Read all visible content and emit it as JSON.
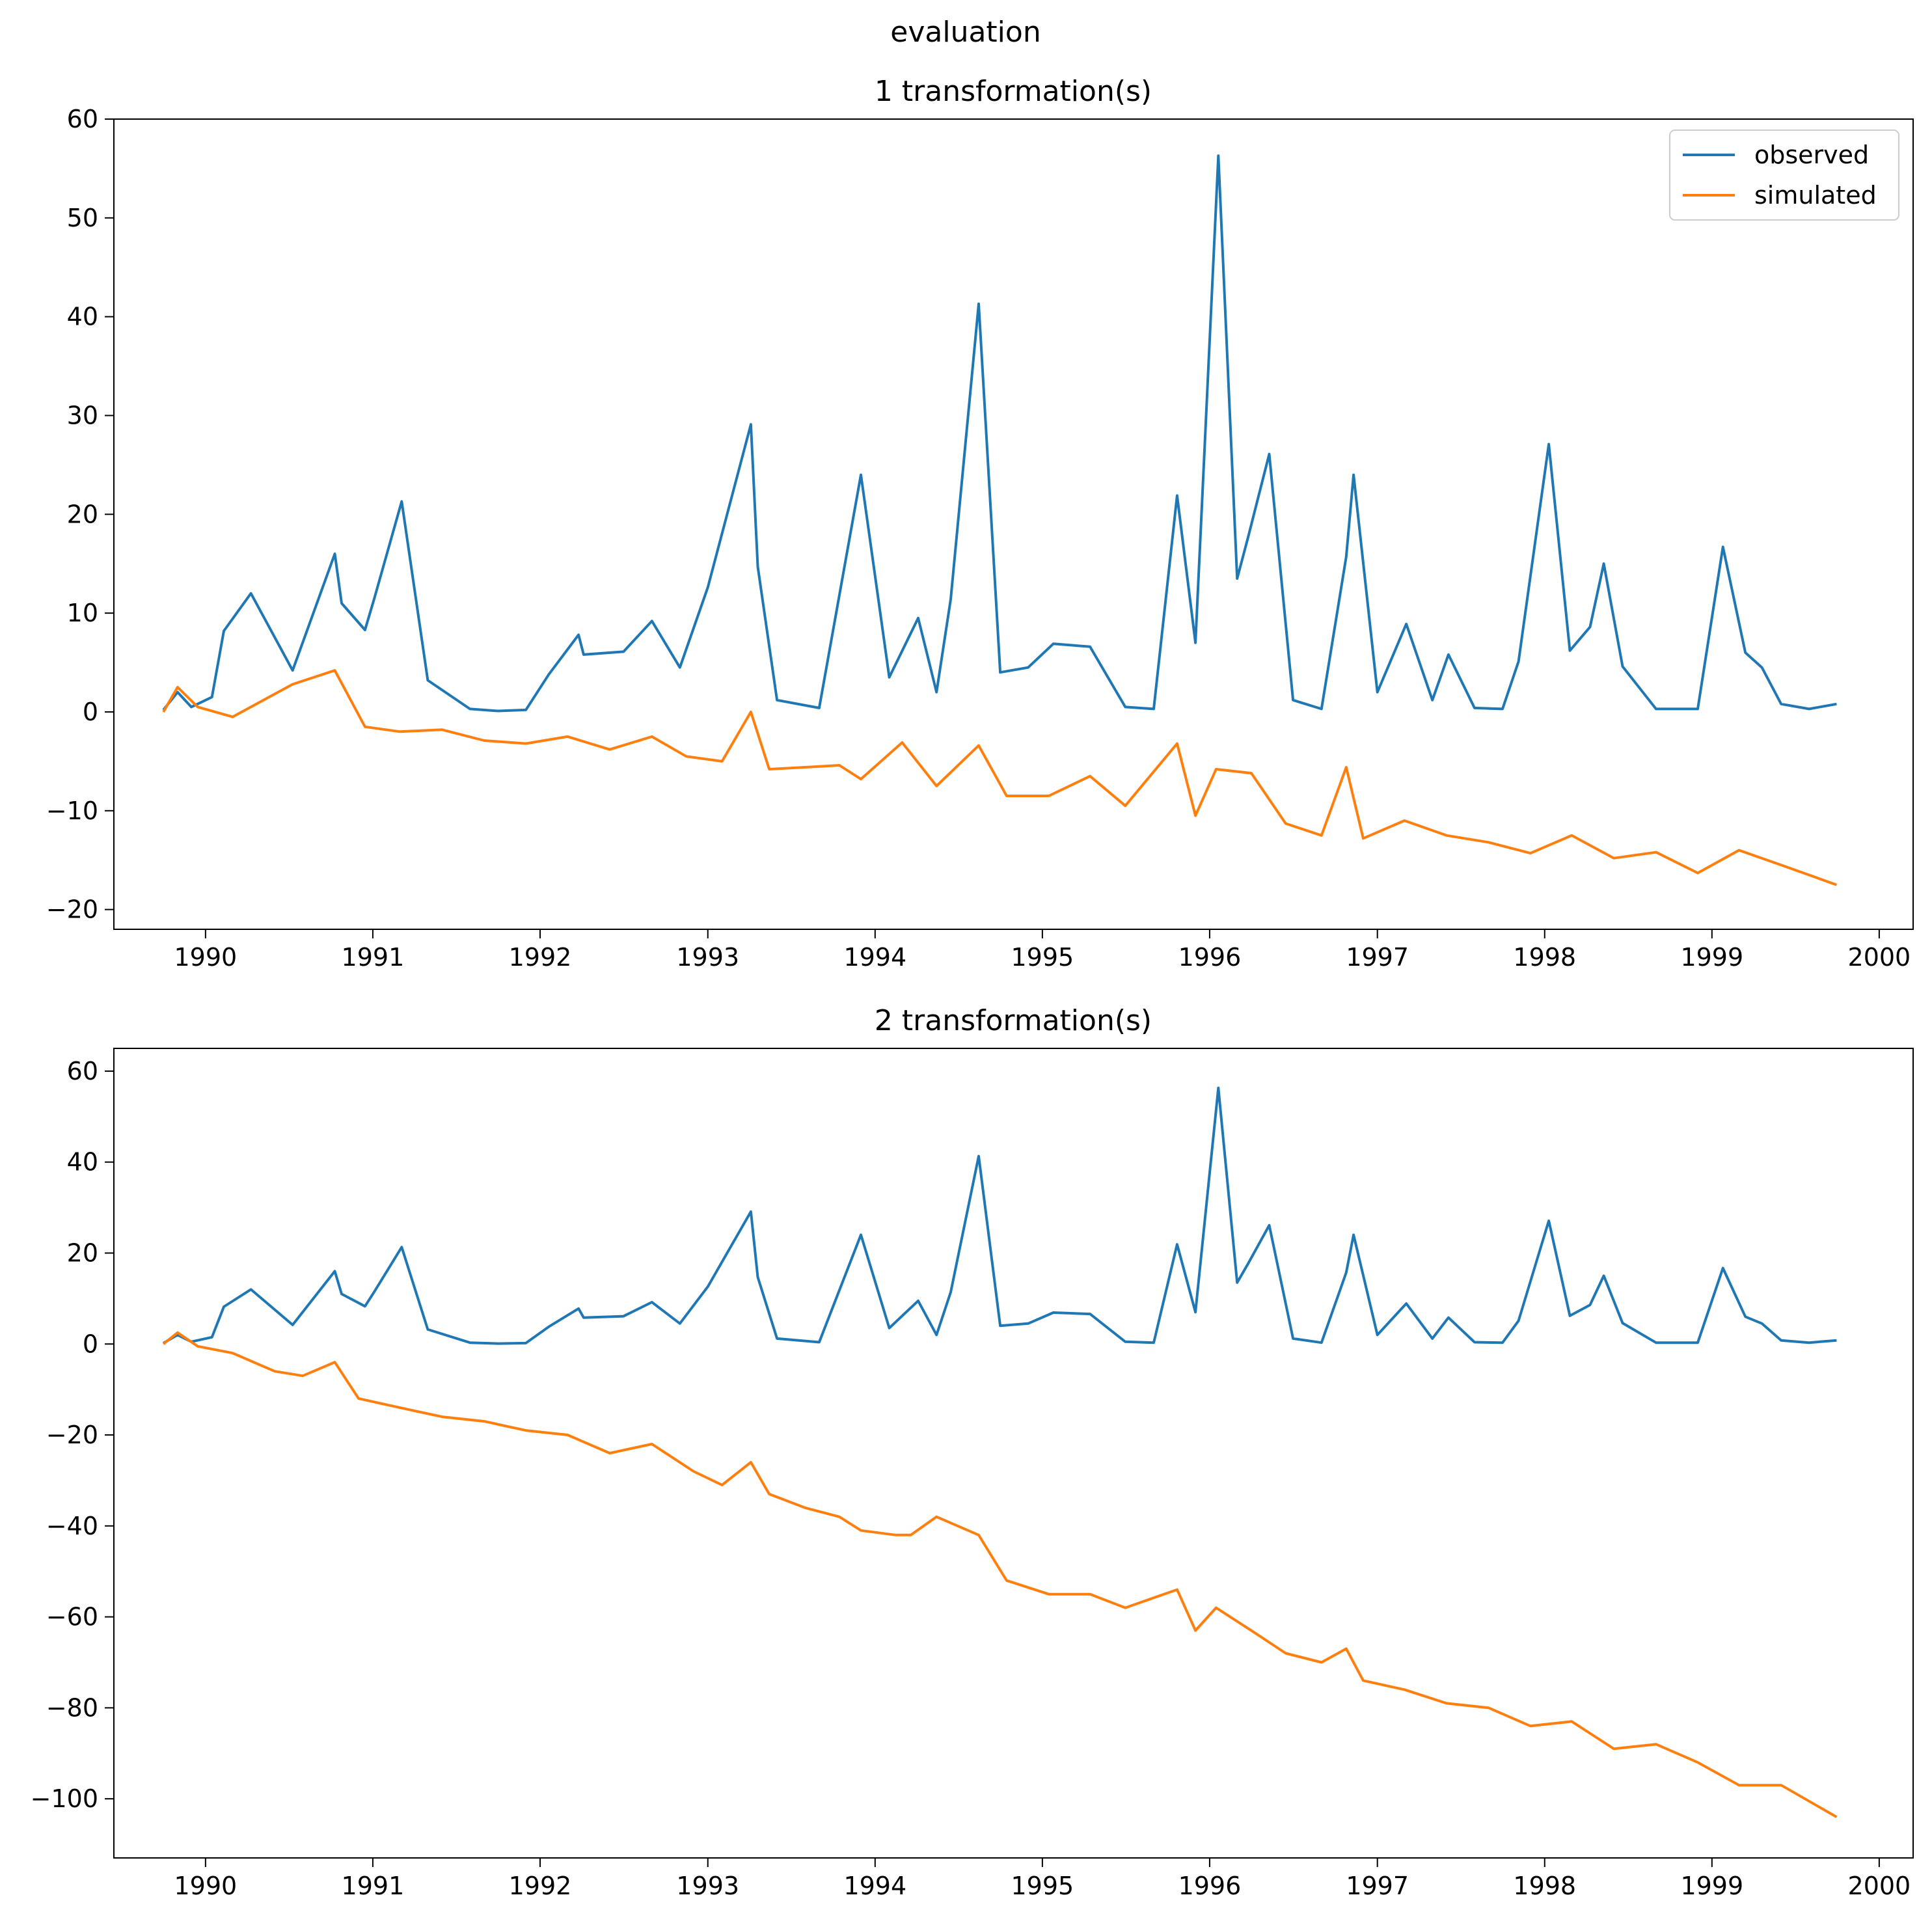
{
  "figure": {
    "suptitle": "evaluation"
  },
  "colors": {
    "observed": "#1f77b4",
    "simulated": "#ff7f0e"
  },
  "legend": {
    "placement": "top-right",
    "entries": [
      "observed",
      "simulated"
    ]
  },
  "chart_data": [
    {
      "type": "line",
      "title": "1 transformation(s)",
      "xlabel": "",
      "ylabel": "",
      "x_axis": "date",
      "xlim": [
        "1989-06-15",
        "2000-03-15"
      ],
      "ylim": [
        -22,
        60
      ],
      "xticks": [
        "1990",
        "1991",
        "1992",
        "1993",
        "1994",
        "1995",
        "1996",
        "1997",
        "1998",
        "1999",
        "2000"
      ],
      "yticks": [
        -20,
        -10,
        0,
        10,
        20,
        30,
        40,
        50,
        60
      ],
      "grid": false,
      "series": [
        {
          "name": "observed",
          "x": [
            "1989-10-01",
            "1989-11-01",
            "1989-12-01",
            "1990-01-15",
            "1990-02-10",
            "1990-04-10",
            "1990-07-10",
            "1990-10-10",
            "1990-10-25",
            "1990-12-15",
            "1991-01-05",
            "1991-03-05",
            "1991-05-01",
            "1991-08-01",
            "1991-10-01",
            "1991-12-01",
            "1992-01-20",
            "1992-03-25",
            "1992-04-05",
            "1992-07-01",
            "1992-09-01",
            "1992-11-01",
            "1993-01-01",
            "1993-04-05",
            "1993-04-20",
            "1993-06-01",
            "1993-09-01",
            "1993-12-01",
            "1994-02-01",
            "1994-04-05",
            "1994-05-15",
            "1994-06-15",
            "1994-08-15",
            "1994-10-01",
            "1994-12-01",
            "1995-01-25",
            "1995-04-15",
            "1995-07-01",
            "1995-09-01",
            "1995-10-22",
            "1995-12-01",
            "1996-01-20",
            "1996-03-01",
            "1996-03-25",
            "1996-05-10",
            "1996-07-01",
            "1996-09-01",
            "1996-10-25",
            "1996-11-10",
            "1997-01-01",
            "1997-03-05",
            "1997-05-01",
            "1997-06-05",
            "1997-08-01",
            "1997-10-01",
            "1997-11-05",
            "1998-01-10",
            "1998-02-25",
            "1998-04-10",
            "1998-05-10",
            "1998-06-20",
            "1998-09-01",
            "1998-12-01",
            "1999-01-25",
            "1999-03-15",
            "1999-04-20",
            "1999-06-01",
            "1999-08-01",
            "1999-09-30"
          ],
          "values": [
            0.2,
            2,
            0.5,
            1.5,
            8.2,
            12,
            4.2,
            16,
            11,
            8.3,
            11.6,
            21.3,
            3.2,
            0.3,
            0.1,
            0.2,
            3.8,
            7.8,
            5.8,
            6.1,
            9.2,
            4.5,
            12.6,
            29.1,
            14.7,
            1.2,
            0.4,
            24,
            3.5,
            9.5,
            2,
            11.4,
            41.3,
            4,
            4.5,
            6.9,
            6.6,
            0.5,
            0.3,
            21.9,
            7,
            56.3,
            13.5,
            17.7,
            26.1,
            1.2,
            0.3,
            15.7,
            24,
            2,
            8.9,
            1.2,
            5.8,
            0.4,
            0.3,
            5.1,
            27.1,
            6.2,
            8.6,
            15,
            4.6,
            0.3,
            0.3,
            16.7,
            6,
            4.5,
            0.8,
            0.3,
            0.8
          ]
        },
        {
          "name": "simulated",
          "x": [
            "1989-10-01",
            "1989-11-01",
            "1989-12-15",
            "1990-03-01",
            "1990-07-10",
            "1990-10-10",
            "1990-12-15",
            "1991-03-01",
            "1991-06-01",
            "1991-09-01",
            "1991-12-01",
            "1992-03-01",
            "1992-06-01",
            "1992-09-01",
            "1992-11-15",
            "1993-02-01",
            "1993-04-05",
            "1993-05-15",
            "1993-08-01",
            "1993-10-15",
            "1993-12-01",
            "1994-03-01",
            "1994-05-15",
            "1994-08-15",
            "1994-10-15",
            "1995-01-15",
            "1995-04-15",
            "1995-07-01",
            "1995-10-22",
            "1995-12-01",
            "1996-01-15",
            "1996-04-01",
            "1996-06-15",
            "1996-09-01",
            "1996-10-25",
            "1996-12-01",
            "1997-03-01",
            "1997-06-01",
            "1997-09-01",
            "1997-12-01",
            "1998-03-01",
            "1998-06-01",
            "1998-09-01",
            "1998-12-01",
            "1999-03-01",
            "1999-06-01",
            "1999-09-30"
          ],
          "values": [
            0,
            2.5,
            0.5,
            -0.5,
            2.8,
            4.2,
            -1.5,
            -2,
            -1.8,
            -2.9,
            -3.2,
            -2.5,
            -3.8,
            -2.5,
            -4.5,
            -5,
            0,
            -5.8,
            -5.6,
            -5.4,
            -6.8,
            -3.1,
            -7.5,
            -3.4,
            -8.5,
            -8.5,
            -6.5,
            -9.5,
            -3.2,
            -10.5,
            -5.8,
            -6.2,
            -11.3,
            -12.5,
            -5.6,
            -12.8,
            -11,
            -12.5,
            -13.2,
            -14.3,
            -12.5,
            -14.8,
            -14.2,
            -16.3,
            -14,
            -15.5,
            -17.5
          ]
        }
      ]
    },
    {
      "type": "line",
      "title": "2 transformation(s)",
      "xlabel": "",
      "ylabel": "",
      "x_axis": "date",
      "xlim": [
        "1989-06-15",
        "2000-03-15"
      ],
      "ylim": [
        -113,
        65
      ],
      "xticks": [
        "1990",
        "1991",
        "1992",
        "1993",
        "1994",
        "1995",
        "1996",
        "1997",
        "1998",
        "1999",
        "2000"
      ],
      "yticks": [
        -100,
        -80,
        -60,
        -40,
        -20,
        0,
        20,
        40,
        60
      ],
      "grid": false,
      "series": [
        {
          "name": "observed",
          "x": [
            "1989-10-01",
            "1989-11-01",
            "1989-12-01",
            "1990-01-15",
            "1990-02-10",
            "1990-04-10",
            "1990-07-10",
            "1990-10-10",
            "1990-10-25",
            "1990-12-15",
            "1991-01-05",
            "1991-03-05",
            "1991-05-01",
            "1991-08-01",
            "1991-10-01",
            "1991-12-01",
            "1992-01-20",
            "1992-03-25",
            "1992-04-05",
            "1992-07-01",
            "1992-09-01",
            "1992-11-01",
            "1993-01-01",
            "1993-04-05",
            "1993-04-20",
            "1993-06-01",
            "1993-09-01",
            "1993-12-01",
            "1994-02-01",
            "1994-04-05",
            "1994-05-15",
            "1994-06-15",
            "1994-08-15",
            "1994-10-01",
            "1994-12-01",
            "1995-01-25",
            "1995-04-15",
            "1995-07-01",
            "1995-09-01",
            "1995-10-22",
            "1995-12-01",
            "1996-01-20",
            "1996-03-01",
            "1996-03-25",
            "1996-05-10",
            "1996-07-01",
            "1996-09-01",
            "1996-10-25",
            "1996-11-10",
            "1997-01-01",
            "1997-03-05",
            "1997-05-01",
            "1997-06-05",
            "1997-08-01",
            "1997-10-01",
            "1997-11-05",
            "1998-01-10",
            "1998-02-25",
            "1998-04-10",
            "1998-05-10",
            "1998-06-20",
            "1998-09-01",
            "1998-12-01",
            "1999-01-25",
            "1999-03-15",
            "1999-04-20",
            "1999-06-01",
            "1999-08-01",
            "1999-09-30"
          ],
          "values": [
            0.2,
            2,
            0.5,
            1.5,
            8.2,
            12,
            4.2,
            16,
            11,
            8.3,
            11.6,
            21.3,
            3.2,
            0.3,
            0.1,
            0.2,
            3.8,
            7.8,
            5.8,
            6.1,
            9.2,
            4.5,
            12.6,
            29.1,
            14.7,
            1.2,
            0.4,
            24,
            3.5,
            9.5,
            2,
            11.4,
            41.3,
            4,
            4.5,
            6.9,
            6.6,
            0.5,
            0.3,
            21.9,
            7,
            56.3,
            13.5,
            17.7,
            26.1,
            1.2,
            0.3,
            15.7,
            24,
            2,
            8.9,
            1.2,
            5.8,
            0.4,
            0.3,
            5.1,
            27.1,
            6.2,
            8.6,
            15,
            4.6,
            0.3,
            0.3,
            16.7,
            6,
            4.5,
            0.8,
            0.3,
            0.8
          ]
        },
        {
          "name": "simulated",
          "x": [
            "1989-10-01",
            "1989-11-01",
            "1989-12-15",
            "1990-03-01",
            "1990-06-01",
            "1990-08-01",
            "1990-10-10",
            "1990-12-01",
            "1991-03-01",
            "1991-06-01",
            "1991-09-01",
            "1991-12-01",
            "1992-03-01",
            "1992-06-01",
            "1992-09-01",
            "1992-12-01",
            "1993-02-01",
            "1993-04-05",
            "1993-05-15",
            "1993-08-01",
            "1993-10-15",
            "1993-12-01",
            "1994-02-15",
            "1994-03-20",
            "1994-05-15",
            "1994-08-15",
            "1994-10-15",
            "1995-01-15",
            "1995-04-15",
            "1995-07-01",
            "1995-10-22",
            "1995-12-01",
            "1996-01-15",
            "1996-04-01",
            "1996-06-15",
            "1996-09-01",
            "1996-10-25",
            "1996-12-01",
            "1997-03-01",
            "1997-06-01",
            "1997-09-01",
            "1997-12-01",
            "1998-03-01",
            "1998-06-01",
            "1998-09-01",
            "1998-12-01",
            "1999-03-01",
            "1999-06-01",
            "1999-09-30"
          ],
          "values": [
            0,
            2.5,
            -0.5,
            -2,
            -6,
            -7,
            -4,
            -12,
            -14,
            -16,
            -17,
            -19,
            -20,
            -24,
            -22,
            -28,
            -31,
            -26,
            -33,
            -36,
            -38,
            -41,
            -42,
            -42,
            -38,
            -42,
            -52,
            -55,
            -55,
            -58,
            -54,
            -63,
            -58,
            -63,
            -68,
            -70,
            -67,
            -74,
            -76,
            -79,
            -80,
            -84,
            -83,
            -89,
            -88,
            -92,
            -97,
            -97,
            -104
          ]
        }
      ]
    }
  ]
}
